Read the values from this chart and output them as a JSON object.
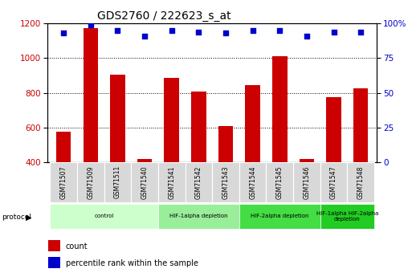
{
  "title": "GDS2760 / 222623_s_at",
  "samples": [
    "GSM71507",
    "GSM71509",
    "GSM71511",
    "GSM71540",
    "GSM71541",
    "GSM71542",
    "GSM71543",
    "GSM71544",
    "GSM71545",
    "GSM71546",
    "GSM71547",
    "GSM71548"
  ],
  "counts": [
    575,
    1175,
    905,
    420,
    885,
    805,
    610,
    845,
    1010,
    420,
    775,
    825
  ],
  "percentile_ranks": [
    93,
    99,
    95,
    91,
    95,
    94,
    93,
    95,
    95,
    91,
    94,
    94
  ],
  "ylim_left": [
    400,
    1200
  ],
  "ylim_right": [
    0,
    100
  ],
  "yticks_left": [
    400,
    600,
    800,
    1000,
    1200
  ],
  "yticks_right": [
    0,
    25,
    50,
    75,
    100
  ],
  "right_tick_labels": [
    "0",
    "25",
    "50",
    "75",
    "100%"
  ],
  "bar_color": "#cc0000",
  "dot_color": "#0000cc",
  "tick_label_color_left": "#cc0000",
  "tick_label_color_right": "#0000cc",
  "sample_box_color": "#d8d8d8",
  "protocol_groups": [
    {
      "label": "control",
      "start": 0,
      "end": 4,
      "color": "#ccffcc"
    },
    {
      "label": "HIF-1alpha depletion",
      "start": 4,
      "end": 7,
      "color": "#99ee99"
    },
    {
      "label": "HIF-2alpha depletion",
      "start": 7,
      "end": 10,
      "color": "#44dd44"
    },
    {
      "label": "HIF-1alpha HIF-2alpha\ndepletion",
      "start": 10,
      "end": 12,
      "color": "#22cc22"
    }
  ],
  "legend_items": [
    {
      "label": "count",
      "color": "#cc0000"
    },
    {
      "label": "percentile rank within the sample",
      "color": "#0000cc"
    }
  ],
  "fig_width": 5.13,
  "fig_height": 3.45,
  "dpi": 100
}
